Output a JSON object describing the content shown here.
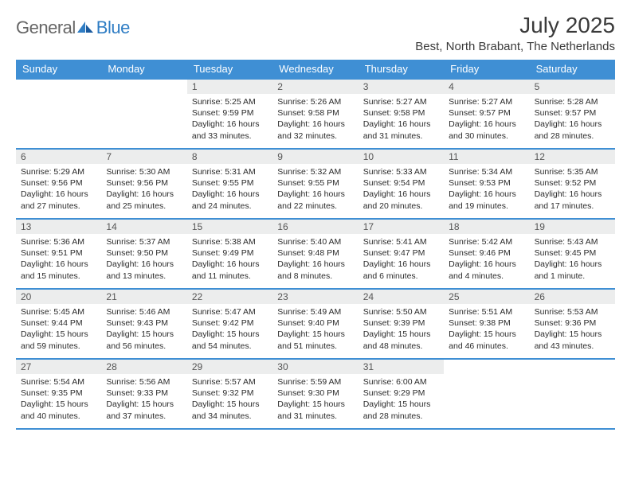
{
  "logo": {
    "text1": "General",
    "text2": "Blue"
  },
  "title": "July 2025",
  "location": "Best, North Brabant, The Netherlands",
  "colors": {
    "header_bg": "#3f8fd4",
    "header_text": "#ffffff",
    "daynum_bg": "#eceded",
    "border": "#3f8fd4"
  },
  "weekdays": [
    "Sunday",
    "Monday",
    "Tuesday",
    "Wednesday",
    "Thursday",
    "Friday",
    "Saturday"
  ],
  "weeks": [
    [
      {
        "day": "",
        "lines": []
      },
      {
        "day": "",
        "lines": []
      },
      {
        "day": "1",
        "lines": [
          "Sunrise: 5:25 AM",
          "Sunset: 9:59 PM",
          "Daylight: 16 hours and 33 minutes."
        ]
      },
      {
        "day": "2",
        "lines": [
          "Sunrise: 5:26 AM",
          "Sunset: 9:58 PM",
          "Daylight: 16 hours and 32 minutes."
        ]
      },
      {
        "day": "3",
        "lines": [
          "Sunrise: 5:27 AM",
          "Sunset: 9:58 PM",
          "Daylight: 16 hours and 31 minutes."
        ]
      },
      {
        "day": "4",
        "lines": [
          "Sunrise: 5:27 AM",
          "Sunset: 9:57 PM",
          "Daylight: 16 hours and 30 minutes."
        ]
      },
      {
        "day": "5",
        "lines": [
          "Sunrise: 5:28 AM",
          "Sunset: 9:57 PM",
          "Daylight: 16 hours and 28 minutes."
        ]
      }
    ],
    [
      {
        "day": "6",
        "lines": [
          "Sunrise: 5:29 AM",
          "Sunset: 9:56 PM",
          "Daylight: 16 hours and 27 minutes."
        ]
      },
      {
        "day": "7",
        "lines": [
          "Sunrise: 5:30 AM",
          "Sunset: 9:56 PM",
          "Daylight: 16 hours and 25 minutes."
        ]
      },
      {
        "day": "8",
        "lines": [
          "Sunrise: 5:31 AM",
          "Sunset: 9:55 PM",
          "Daylight: 16 hours and 24 minutes."
        ]
      },
      {
        "day": "9",
        "lines": [
          "Sunrise: 5:32 AM",
          "Sunset: 9:55 PM",
          "Daylight: 16 hours and 22 minutes."
        ]
      },
      {
        "day": "10",
        "lines": [
          "Sunrise: 5:33 AM",
          "Sunset: 9:54 PM",
          "Daylight: 16 hours and 20 minutes."
        ]
      },
      {
        "day": "11",
        "lines": [
          "Sunrise: 5:34 AM",
          "Sunset: 9:53 PM",
          "Daylight: 16 hours and 19 minutes."
        ]
      },
      {
        "day": "12",
        "lines": [
          "Sunrise: 5:35 AM",
          "Sunset: 9:52 PM",
          "Daylight: 16 hours and 17 minutes."
        ]
      }
    ],
    [
      {
        "day": "13",
        "lines": [
          "Sunrise: 5:36 AM",
          "Sunset: 9:51 PM",
          "Daylight: 16 hours and 15 minutes."
        ]
      },
      {
        "day": "14",
        "lines": [
          "Sunrise: 5:37 AM",
          "Sunset: 9:50 PM",
          "Daylight: 16 hours and 13 minutes."
        ]
      },
      {
        "day": "15",
        "lines": [
          "Sunrise: 5:38 AM",
          "Sunset: 9:49 PM",
          "Daylight: 16 hours and 11 minutes."
        ]
      },
      {
        "day": "16",
        "lines": [
          "Sunrise: 5:40 AM",
          "Sunset: 9:48 PM",
          "Daylight: 16 hours and 8 minutes."
        ]
      },
      {
        "day": "17",
        "lines": [
          "Sunrise: 5:41 AM",
          "Sunset: 9:47 PM",
          "Daylight: 16 hours and 6 minutes."
        ]
      },
      {
        "day": "18",
        "lines": [
          "Sunrise: 5:42 AM",
          "Sunset: 9:46 PM",
          "Daylight: 16 hours and 4 minutes."
        ]
      },
      {
        "day": "19",
        "lines": [
          "Sunrise: 5:43 AM",
          "Sunset: 9:45 PM",
          "Daylight: 16 hours and 1 minute."
        ]
      }
    ],
    [
      {
        "day": "20",
        "lines": [
          "Sunrise: 5:45 AM",
          "Sunset: 9:44 PM",
          "Daylight: 15 hours and 59 minutes."
        ]
      },
      {
        "day": "21",
        "lines": [
          "Sunrise: 5:46 AM",
          "Sunset: 9:43 PM",
          "Daylight: 15 hours and 56 minutes."
        ]
      },
      {
        "day": "22",
        "lines": [
          "Sunrise: 5:47 AM",
          "Sunset: 9:42 PM",
          "Daylight: 15 hours and 54 minutes."
        ]
      },
      {
        "day": "23",
        "lines": [
          "Sunrise: 5:49 AM",
          "Sunset: 9:40 PM",
          "Daylight: 15 hours and 51 minutes."
        ]
      },
      {
        "day": "24",
        "lines": [
          "Sunrise: 5:50 AM",
          "Sunset: 9:39 PM",
          "Daylight: 15 hours and 48 minutes."
        ]
      },
      {
        "day": "25",
        "lines": [
          "Sunrise: 5:51 AM",
          "Sunset: 9:38 PM",
          "Daylight: 15 hours and 46 minutes."
        ]
      },
      {
        "day": "26",
        "lines": [
          "Sunrise: 5:53 AM",
          "Sunset: 9:36 PM",
          "Daylight: 15 hours and 43 minutes."
        ]
      }
    ],
    [
      {
        "day": "27",
        "lines": [
          "Sunrise: 5:54 AM",
          "Sunset: 9:35 PM",
          "Daylight: 15 hours and 40 minutes."
        ]
      },
      {
        "day": "28",
        "lines": [
          "Sunrise: 5:56 AM",
          "Sunset: 9:33 PM",
          "Daylight: 15 hours and 37 minutes."
        ]
      },
      {
        "day": "29",
        "lines": [
          "Sunrise: 5:57 AM",
          "Sunset: 9:32 PM",
          "Daylight: 15 hours and 34 minutes."
        ]
      },
      {
        "day": "30",
        "lines": [
          "Sunrise: 5:59 AM",
          "Sunset: 9:30 PM",
          "Daylight: 15 hours and 31 minutes."
        ]
      },
      {
        "day": "31",
        "lines": [
          "Sunrise: 6:00 AM",
          "Sunset: 9:29 PM",
          "Daylight: 15 hours and 28 minutes."
        ]
      },
      {
        "day": "",
        "lines": []
      },
      {
        "day": "",
        "lines": []
      }
    ]
  ]
}
